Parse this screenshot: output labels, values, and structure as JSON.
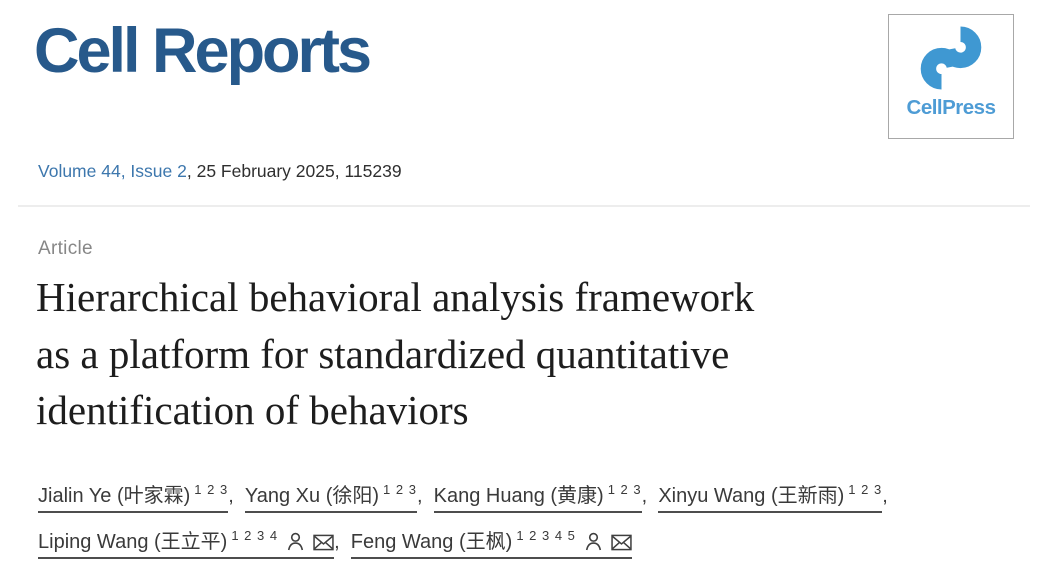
{
  "journal": {
    "logo_text": "Cell Reports"
  },
  "publisher": {
    "logo_text": "CellPress"
  },
  "citation": {
    "issue_link": "Volume 44, Issue 2",
    "date_and_id": ", 25 February 2025, 115239"
  },
  "article_type_label": "Article",
  "title": "Hierarchical behavioral analysis framework as a platform for standardized quantitative identification of behaviors",
  "title_lines": [
    "Hierarchical behavioral analysis framework",
    "as a platform for standardized quantitative",
    "identification of behaviors"
  ],
  "author_lines": [
    [
      {
        "name": "Jialin Ye (叶家霖)",
        "affiliations": "1 2 3",
        "has_profile_icon": false,
        "has_email_icon": false,
        "separator": ", "
      },
      {
        "name": "Yang Xu (徐阳)",
        "affiliations": "1 2 3",
        "has_profile_icon": false,
        "has_email_icon": false,
        "separator": ", "
      },
      {
        "name": "Kang Huang (黄康)",
        "affiliations": "1 2 3",
        "has_profile_icon": false,
        "has_email_icon": false,
        "separator": ", "
      },
      {
        "name": "Xinyu Wang (王新雨)",
        "affiliations": "1 2 3",
        "has_profile_icon": false,
        "has_email_icon": false,
        "separator": ","
      }
    ],
    [
      {
        "name": "Liping Wang (王立平)",
        "affiliations": "1 2 3 4",
        "has_profile_icon": true,
        "has_email_icon": true,
        "separator": ", "
      },
      {
        "name": "Feng Wang (王枫)",
        "affiliations": "1 2 3 4 5",
        "has_profile_icon": true,
        "has_email_icon": true,
        "separator": ""
      }
    ]
  ],
  "icon_names": {
    "profile": "person-outline-icon",
    "email": "envelope-icon",
    "publisher_mark": "cellpress-mark-icon"
  },
  "colors": {
    "journal_blue": "#27598b",
    "cellpress_blue": "#4e9cd5",
    "cellpress_mark_blue": "#3f98d2",
    "link_blue": "#3d77ad",
    "title_black": "#1d1d1d",
    "muted_gray": "#878787",
    "author_gray": "#3a3a3a",
    "divider_gray": "#ededed"
  }
}
